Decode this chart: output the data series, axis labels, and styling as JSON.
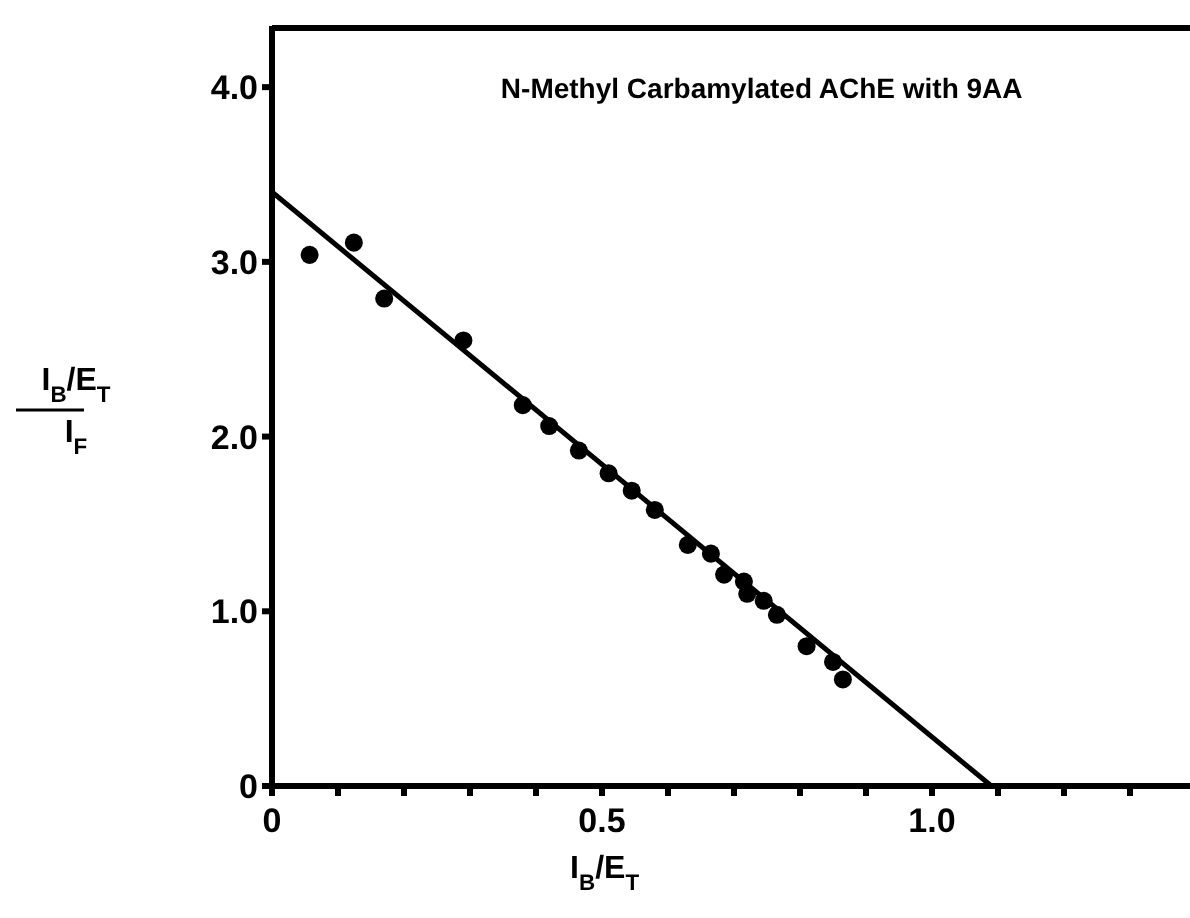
{
  "chart_data": {
    "type": "scatter",
    "title": "N-Methyl Carbamylated  AChE with 9AA",
    "xlabel": "I$_{B}$/E$_{T}$",
    "ylabel": "I$_{B}$/E$_{T}$\nI$_{F}$",
    "xlim": [
      0,
      1.4
    ],
    "xticks": [
      0,
      {
        "value": 0.1,
        "label": null
      },
      {
        "value": 0.2,
        "label": null
      },
      {
        "value": 0.3,
        "label": null
      },
      {
        "value": 0.4,
        "label": null
      },
      0.5,
      {
        "value": 0.6,
        "label": null
      },
      {
        "value": 0.7,
        "label": null
      },
      {
        "value": 0.8,
        "label": null
      },
      {
        "value": 0.9,
        "label": null
      },
      {
        "value": 1.0,
        "label": "1.0"
      },
      {
        "value": 1.1,
        "label": null
      },
      {
        "value": 1.2,
        "label": null
      },
      {
        "value": 1.3,
        "label": null
      }
    ],
    "ylim": [
      0,
      4.35
    ],
    "yticks": [
      0,
      {
        "value": 1,
        "label": "1.0"
      },
      {
        "value": 2,
        "label": "2.0"
      },
      {
        "value": 3,
        "label": "3.0"
      },
      {
        "value": 4,
        "label": "4.0"
      }
    ],
    "marker": "circle",
    "series": [
      {
        "color": "#000000",
        "x": [
          0.057,
          0.124,
          0.17,
          0.29,
          0.38,
          0.42,
          0.465,
          0.51,
          0.545,
          0.58,
          0.63,
          0.665,
          0.685,
          0.715,
          0.72,
          0.745,
          0.765,
          0.81,
          0.85,
          0.865
        ],
        "values": [
          3.04,
          3.11,
          2.79,
          2.55,
          2.18,
          2.06,
          1.92,
          1.79,
          1.69,
          1.58,
          1.38,
          1.33,
          1.21,
          1.17,
          1.1,
          1.06,
          0.98,
          0.8,
          0.71,
          0.61
        ]
      },
      {
        "type": "line",
        "color": "#000000",
        "x": [
          0,
          1.09
        ],
        "values": [
          3.4,
          0
        ],
        "line_style": "solid",
        "marker": "none"
      }
    ]
  }
}
